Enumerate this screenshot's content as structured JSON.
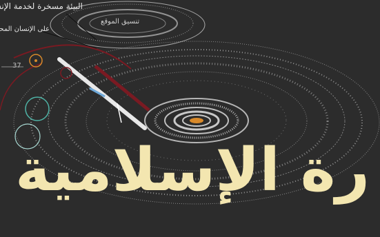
{
  "slide": {
    "title": "رة الإسلامية",
    "heading_line1": "البيئة مسخرة لخدمة الإنسان",
    "heading_line2": "على الإنسان المحافظة",
    "inner_label": "تنسيق الموقع",
    "number_label": "37"
  },
  "colors": {
    "background": "#2c2c2c",
    "title": "#f3e6b0",
    "accent_red": "#7a1a22",
    "accent_teal": "#4fb3a6",
    "accent_orange": "#d98a2b"
  }
}
